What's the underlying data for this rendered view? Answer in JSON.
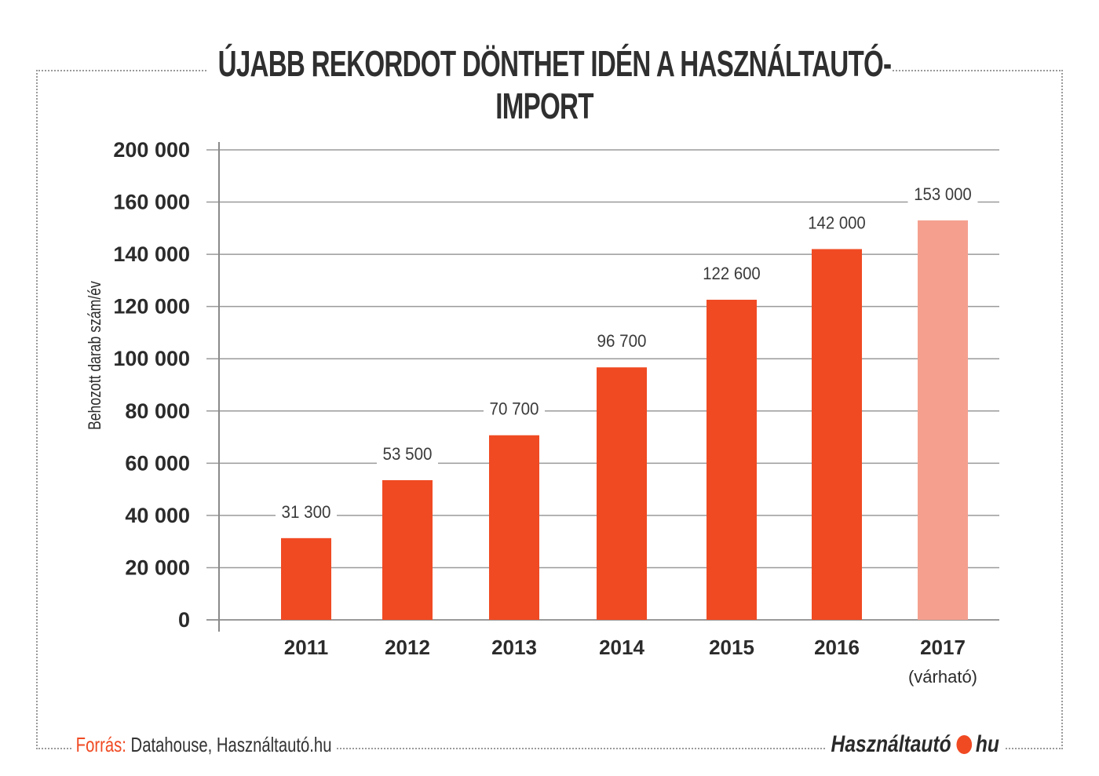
{
  "title": "ÚJABB REKORDOT DÖNTHET IDÉN A HASZNÁLTAUTÓ-IMPORT",
  "source": {
    "label": "Forrás:",
    "text": "Datahouse, Használtautó.hu"
  },
  "logo": {
    "left": "Használtautó",
    "right": "hu",
    "dot_color": "#f04a23"
  },
  "colors": {
    "bar": "#f04a23",
    "bar_forecast": "#f5a08f",
    "grid": "#9a9a9a"
  },
  "chart_data": {
    "type": "bar",
    "title": "ÚJABB REKORDOT DÖNTHET IDÉN A HASZNÁLTAUTÓ-IMPORT",
    "ylabel": "Behozott darab szám/év",
    "xlabel": "",
    "ylim": [
      0,
      200000
    ],
    "yticks": [
      0,
      20000,
      40000,
      60000,
      80000,
      100000,
      120000,
      140000,
      160000,
      200000
    ],
    "ytick_labels": [
      "0",
      "20 000",
      "40 000",
      "60 000",
      "80 000",
      "100 000",
      "120 000",
      "140 000",
      "160 000",
      "200 000"
    ],
    "categories": [
      "2011",
      "2012",
      "2013",
      "2014",
      "2015",
      "2016",
      "2017"
    ],
    "category_sublabels": [
      "",
      "",
      "",
      "",
      "",
      "",
      "(várható)"
    ],
    "values": [
      31300,
      53500,
      70700,
      96700,
      122600,
      142000,
      153000
    ],
    "value_labels": [
      "31 300",
      "53 500",
      "70 700",
      "96 700",
      "122 600",
      "142 000",
      "153 000"
    ],
    "forecast": [
      false,
      false,
      false,
      false,
      false,
      false,
      true
    ],
    "grid": true
  }
}
